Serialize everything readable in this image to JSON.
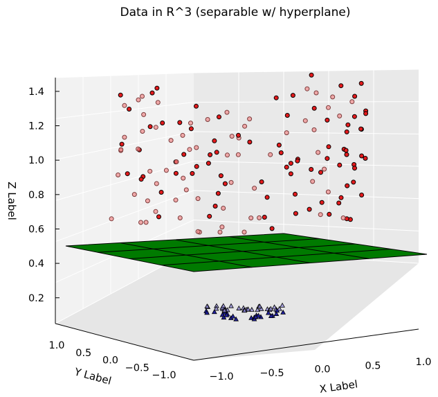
{
  "chart_data": {
    "type": "scatter3d",
    "title": "Data in R^3 (separable w/ hyperplane)",
    "xlabel": "X Label",
    "ylabel": "Y Label",
    "zlabel": "Z Label",
    "xlim": [
      -1.25,
      1.25
    ],
    "ylim": [
      -1.25,
      1.25
    ],
    "zlim": [
      0.05,
      1.48
    ],
    "x_ticks": [
      "−1.0",
      "−0.5",
      "0.0",
      "0.5",
      "1.0"
    ],
    "y_ticks": [
      "1.0",
      "0.5",
      "0.0",
      "−0.5",
      "−1.0"
    ],
    "z_ticks": [
      "0.2",
      "0.4",
      "0.6",
      "0.8",
      "1.0",
      "1.2",
      "1.4"
    ],
    "grid": true,
    "plane": {
      "z": 0.5,
      "color": "#007a00"
    },
    "series": [
      {
        "marker": "circle",
        "color": "#e31a1c",
        "count": 150,
        "z_range": [
          0.62,
          1.45
        ]
      },
      {
        "marker": "triangle",
        "color": "#1f1f9e",
        "count": 56,
        "z_range": [
          0.12,
          0.22
        ]
      }
    ]
  }
}
